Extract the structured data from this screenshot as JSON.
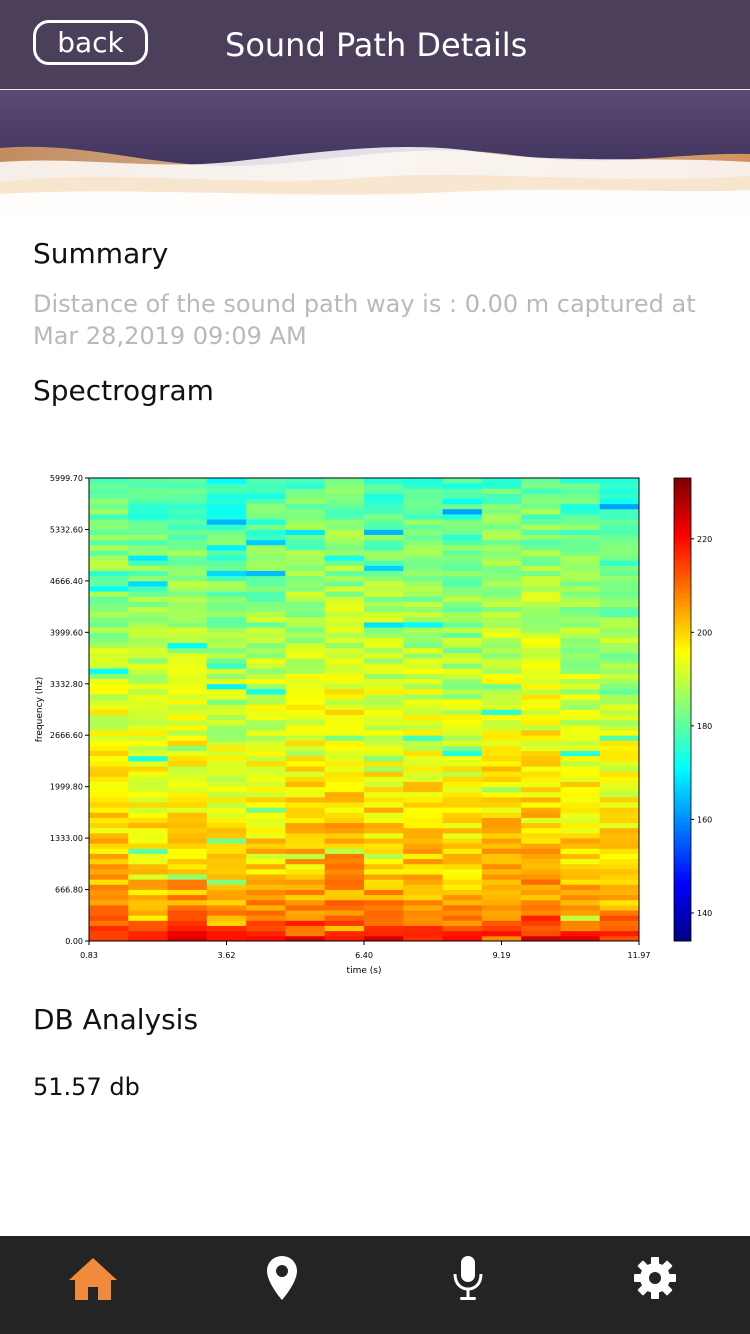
{
  "header": {
    "back_label": "back",
    "title": "Sound Path Details"
  },
  "summary": {
    "heading": "Summary",
    "text": "Distance of the sound path way is : 0.00 m captured at Mar 28,2019 09:09 AM"
  },
  "spectrogram": {
    "heading": "Spectrogram"
  },
  "db_analysis": {
    "heading": "DB Analysis",
    "value": "51.57 db"
  },
  "tabbar": {
    "items": [
      {
        "icon": "home-icon",
        "active": true
      },
      {
        "icon": "location-pin-icon",
        "active": false
      },
      {
        "icon": "microphone-icon",
        "active": false
      },
      {
        "icon": "gear-icon",
        "active": false
      }
    ],
    "active_color": "#f08a3c",
    "inactive_color": "#ffffff"
  },
  "colors": {
    "header_bg": "#4b3f5c",
    "tabbar_bg": "#242424",
    "summary_text": "#b9b9b9"
  },
  "chart_data": {
    "type": "heatmap",
    "xlabel": "time (s)",
    "ylabel": "frequency (hz)",
    "x_ticks": [
      "0.83",
      "3.62",
      "6.40",
      "9.19",
      "11.97"
    ],
    "y_ticks": [
      "0.00",
      "666.80",
      "1333.00",
      "1999.80",
      "2666.60",
      "3332.80",
      "3999.60",
      "4666.40",
      "5332.60",
      "5999.70"
    ],
    "xlim": [
      0.83,
      11.97
    ],
    "ylim": [
      0,
      5999.7
    ],
    "colorbar": {
      "ticks": [
        "140",
        "160",
        "180",
        "200",
        "220"
      ],
      "range": [
        134,
        233
      ],
      "colormap": "jet"
    },
    "time_columns": 14,
    "frequency_bins": 90,
    "level_profile_db": {
      "frequency_hz": [
        0,
        200,
        600,
        1333,
        2000,
        2666,
        3333,
        4000,
        4666,
        5333,
        6000
      ],
      "mean_level": [
        222,
        212,
        204,
        200,
        197,
        194,
        191,
        188,
        185,
        182,
        178
      ]
    },
    "column_offsets_db": [
      0,
      -2,
      0,
      -3,
      -1,
      1,
      2,
      0,
      0,
      -2,
      1,
      2,
      -1,
      -2
    ],
    "grid": false
  }
}
